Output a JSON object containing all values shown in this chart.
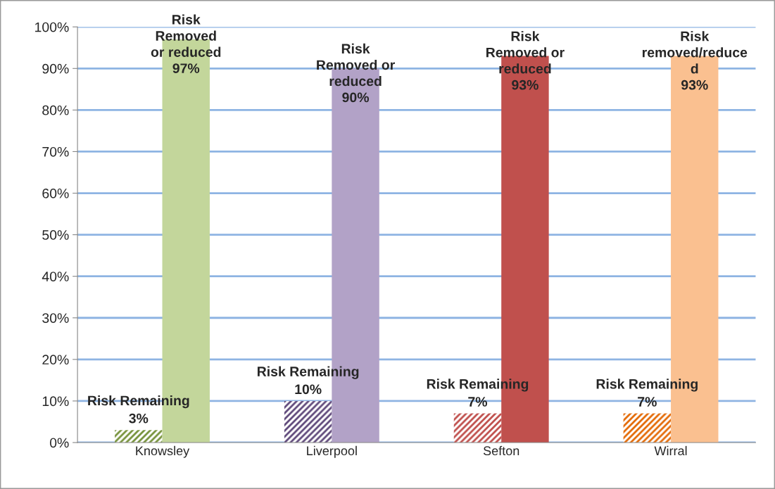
{
  "chart_data": {
    "type": "bar",
    "categories": [
      "Knowsley",
      "Liverpool",
      "Sefton",
      "Wirral"
    ],
    "series": [
      {
        "colors": [
          "#77933c",
          "#604a7b",
          "#c0504d",
          "#e46c0a"
        ],
        "values": [
          3,
          10,
          7,
          7
        ],
        "value_labels": [
          "Risk Remaining\n3%",
          "Risk Remaining\n10%",
          "Risk Remaining\n7%",
          "Risk Remaining\n7%"
        ]
      },
      {
        "colors": [
          "#c3d69b",
          "#b2a2c7",
          "#c0504d",
          "#fac090"
        ],
        "values": [
          97,
          90,
          93,
          93
        ],
        "value_labels": [
          "Risk\nRemoved\nor reduced\n97%",
          "Risk\nRemoved or\nreduced\n90%",
          "Risk\nRemoved or\nreduced\n93%",
          "Risk\nremoved/reduce\nd\n93%"
        ]
      }
    ],
    "ylim": [
      0,
      100
    ],
    "yticks": [
      {
        "value": 0,
        "label": "0%"
      },
      {
        "value": 10,
        "label": "10%"
      },
      {
        "value": 20,
        "label": "20%"
      },
      {
        "value": 30,
        "label": "30%"
      },
      {
        "value": 40,
        "label": "40%"
      },
      {
        "value": 50,
        "label": "50%"
      },
      {
        "value": 60,
        "label": "60%"
      },
      {
        "value": 70,
        "label": "70%"
      },
      {
        "value": 80,
        "label": "80%"
      },
      {
        "value": 90,
        "label": "90%"
      },
      {
        "value": 100,
        "label": "100%"
      }
    ],
    "grid": "y",
    "legend": false
  }
}
